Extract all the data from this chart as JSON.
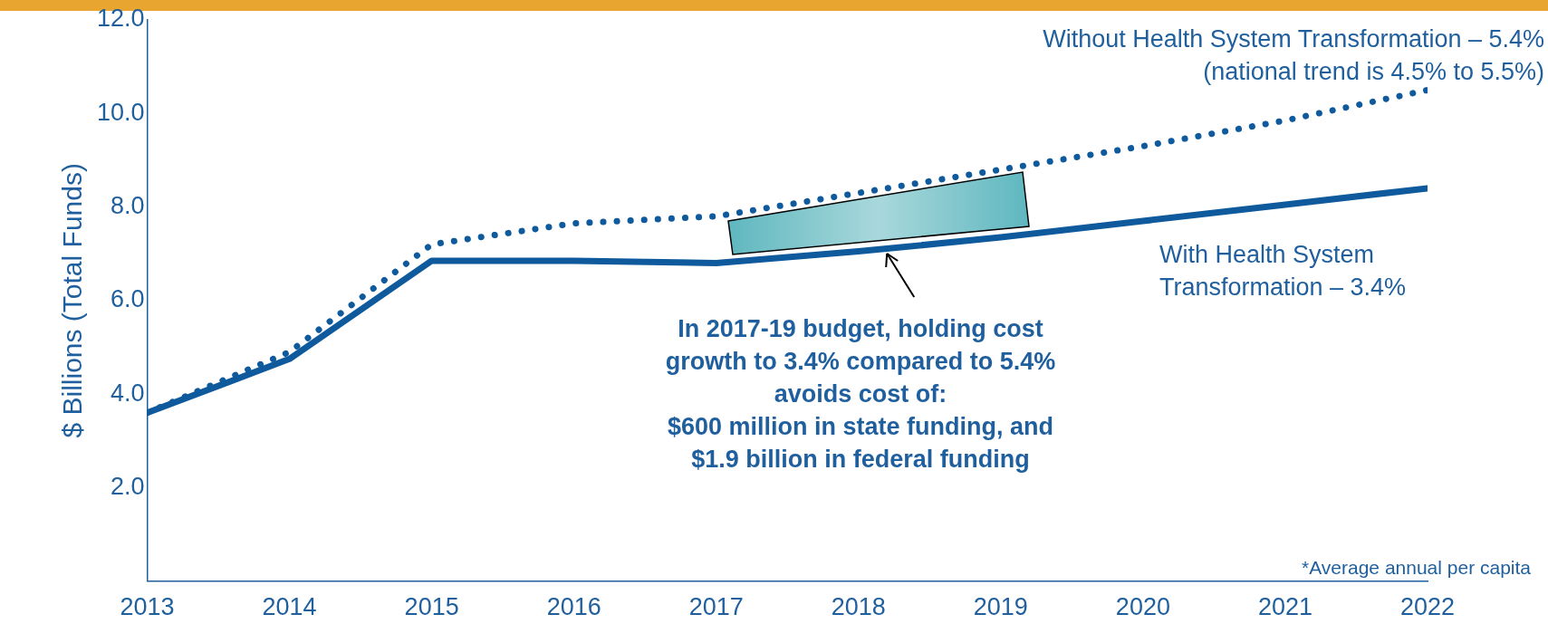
{
  "chart_data": {
    "type": "line",
    "ylabel": "$ Billions (Total Funds)",
    "x": [
      2013,
      2014,
      2015,
      2016,
      2017,
      2018,
      2019,
      2020,
      2021,
      2022
    ],
    "series": [
      {
        "name": "Without Health System Transformation – 5.4%\n(national trend is 4.5% to 5.5%)",
        "color": "#0e5a9c",
        "line_style": "dotted",
        "values": [
          3.6,
          4.9,
          7.2,
          7.65,
          7.8,
          8.3,
          8.8,
          9.3,
          9.85,
          10.5
        ]
      },
      {
        "name": "With Health System\nTransformation – 3.4%",
        "color": "#0e5a9c",
        "line_style": "solid",
        "values": [
          3.6,
          4.75,
          6.85,
          6.85,
          6.8,
          7.05,
          7.35,
          7.7,
          8.05,
          8.4
        ]
      }
    ],
    "xlim": [
      2013,
      2022
    ],
    "xticks": [
      2013,
      2014,
      2015,
      2016,
      2017,
      2018,
      2019,
      2020,
      2021,
      2022
    ],
    "ylim": [
      0,
      12
    ],
    "yticks": [
      {
        "value": 2,
        "label": "2.0"
      },
      {
        "value": 4,
        "label": "4.0"
      },
      {
        "value": 6,
        "label": "6.0"
      },
      {
        "value": 8,
        "label": "8.0"
      },
      {
        "value": 10,
        "label": "10.0"
      },
      {
        "value": 12,
        "label": "12.0"
      }
    ],
    "grid": false,
    "legend": false,
    "marker": "none",
    "annotations": [
      {
        "text": "In 2017-19 budget, holding cost\ngrowth to 3.4% compared to 5.4%\navoids cost of:\n$600 million in state funding, and\n$1.9 billion in federal funding",
        "x": 2018.2,
        "y": 7.1
      },
      "*Average annual per capita"
    ]
  }
}
